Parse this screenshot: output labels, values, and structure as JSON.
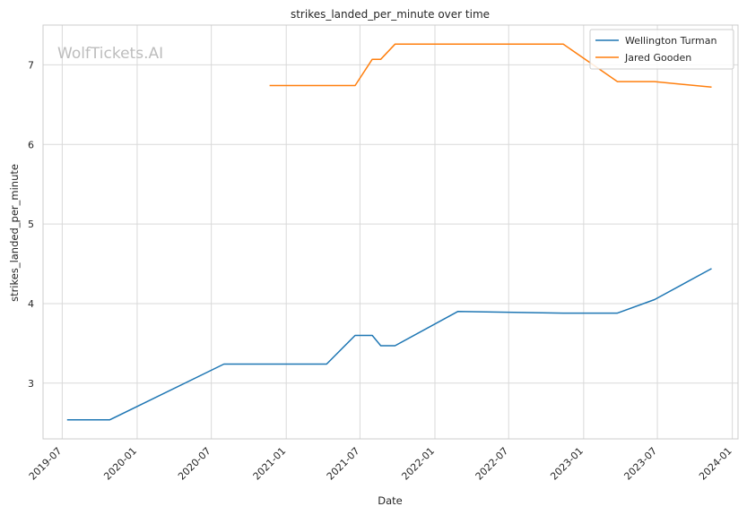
{
  "watermark": "WolfTickets.AI",
  "chart_data": {
    "type": "line",
    "title": "strikes_landed_per_minute over time",
    "xlabel": "Date",
    "ylabel": "strikes_landed_per_minute",
    "x_ticks": [
      "2019-07-01",
      "2020-01-01",
      "2020-07-01",
      "2021-01-01",
      "2021-07-01",
      "2022-01-01",
      "2022-07-01",
      "2023-01-01",
      "2023-07-01",
      "2024-01-01"
    ],
    "x_tick_labels": [
      "2019-07",
      "2020-01",
      "2020-07",
      "2021-01",
      "2021-07",
      "2022-01",
      "2022-07",
      "2023-01",
      "2023-07",
      "2024-01"
    ],
    "y_ticks": [
      3,
      4,
      5,
      6,
      7
    ],
    "xlim": [
      "2019-05-15",
      "2024-01-15"
    ],
    "ylim": [
      2.3,
      7.5
    ],
    "grid": true,
    "legend_position": "top-right",
    "series": [
      {
        "name": "Wellington Turman",
        "color": "#1f77b4",
        "points": [
          [
            "2019-07-13",
            2.54
          ],
          [
            "2019-10-26",
            2.54
          ],
          [
            "2020-08-01",
            3.24
          ],
          [
            "2021-04-10",
            3.24
          ],
          [
            "2021-06-19",
            3.6
          ],
          [
            "2021-07-31",
            3.6
          ],
          [
            "2021-08-21",
            3.47
          ],
          [
            "2021-09-25",
            3.47
          ],
          [
            "2022-02-26",
            3.9
          ],
          [
            "2022-11-12",
            3.88
          ],
          [
            "2023-03-25",
            3.88
          ],
          [
            "2023-06-24",
            4.05
          ],
          [
            "2023-11-11",
            4.44
          ]
        ]
      },
      {
        "name": "Jared Gooden",
        "color": "#ff7f0e",
        "points": [
          [
            "2020-11-21",
            6.74
          ],
          [
            "2021-06-19",
            6.74
          ],
          [
            "2021-07-31",
            7.07
          ],
          [
            "2021-08-21",
            7.07
          ],
          [
            "2021-09-25",
            7.26
          ],
          [
            "2022-11-12",
            7.26
          ],
          [
            "2023-03-25",
            6.79
          ],
          [
            "2023-06-24",
            6.79
          ],
          [
            "2023-11-11",
            6.72
          ]
        ]
      }
    ]
  }
}
